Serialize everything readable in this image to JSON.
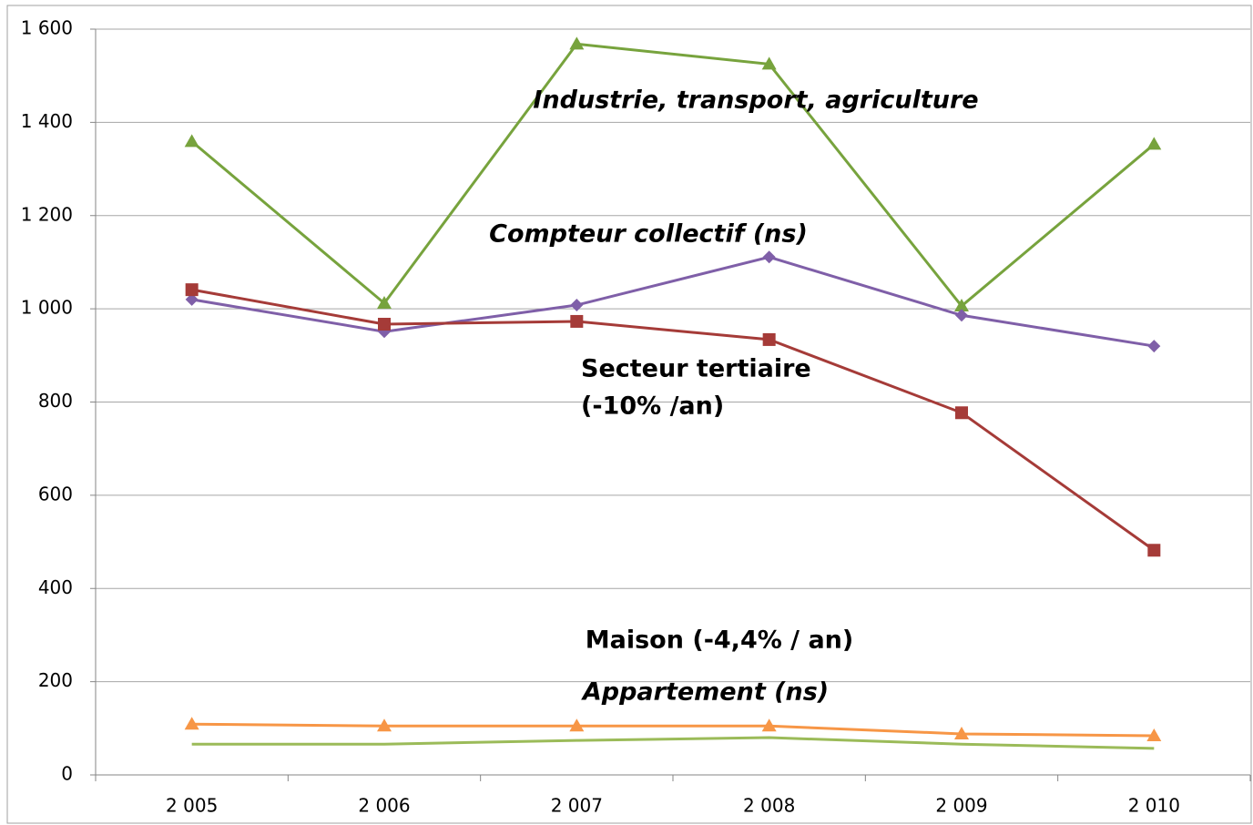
{
  "chart_data": {
    "type": "line",
    "categories": [
      "2 005",
      "2 006",
      "2 007",
      "2 008",
      "2 009",
      "2 010"
    ],
    "ylim": [
      0,
      1600
    ],
    "yticks": [
      0,
      200,
      400,
      600,
      800,
      {
        "value": 1000,
        "label": "1 000"
      },
      {
        "value": 1200,
        "label": "1 200"
      },
      {
        "value": 1400,
        "label": "1 400"
      },
      {
        "value": 1600,
        "label": "1 600"
      }
    ],
    "grid": true,
    "series": [
      {
        "label_lines": [
          "Industrie, transport, agriculture"
        ],
        "color": "#77a33d",
        "label_color": "#92c04f",
        "marker": "triangle",
        "values": [
          1359,
          1012,
          1568,
          1525,
          1006,
          1353
        ]
      },
      {
        "label_lines": [
          "Compteur collectif (ns)"
        ],
        "color": "#7f5fa8",
        "label_color": "#7f5fa8",
        "marker": "diamond",
        "values": [
          1020,
          951,
          1008,
          1111,
          986,
          920
        ]
      },
      {
        "label_lines": [
          "Secteur tertiaire",
          "(-10% /an)"
        ],
        "color": "#a53b38",
        "label_color": "#b8403c",
        "marker": "square",
        "values": [
          1041,
          967,
          973,
          934,
          777,
          482
        ]
      },
      {
        "label_lines": [
          "Maison (-4,4% / an)"
        ],
        "color": "#f79646",
        "label_color": "#f79646",
        "marker": "triangle",
        "values": [
          109,
          105,
          105,
          105,
          88,
          84
        ]
      },
      {
        "label_lines": [
          "Appartement (ns)"
        ],
        "color": "#9bbb59",
        "label_color": "#4f6228",
        "marker": "none",
        "values": [
          66,
          66,
          74,
          80,
          66,
          57
        ]
      }
    ]
  }
}
